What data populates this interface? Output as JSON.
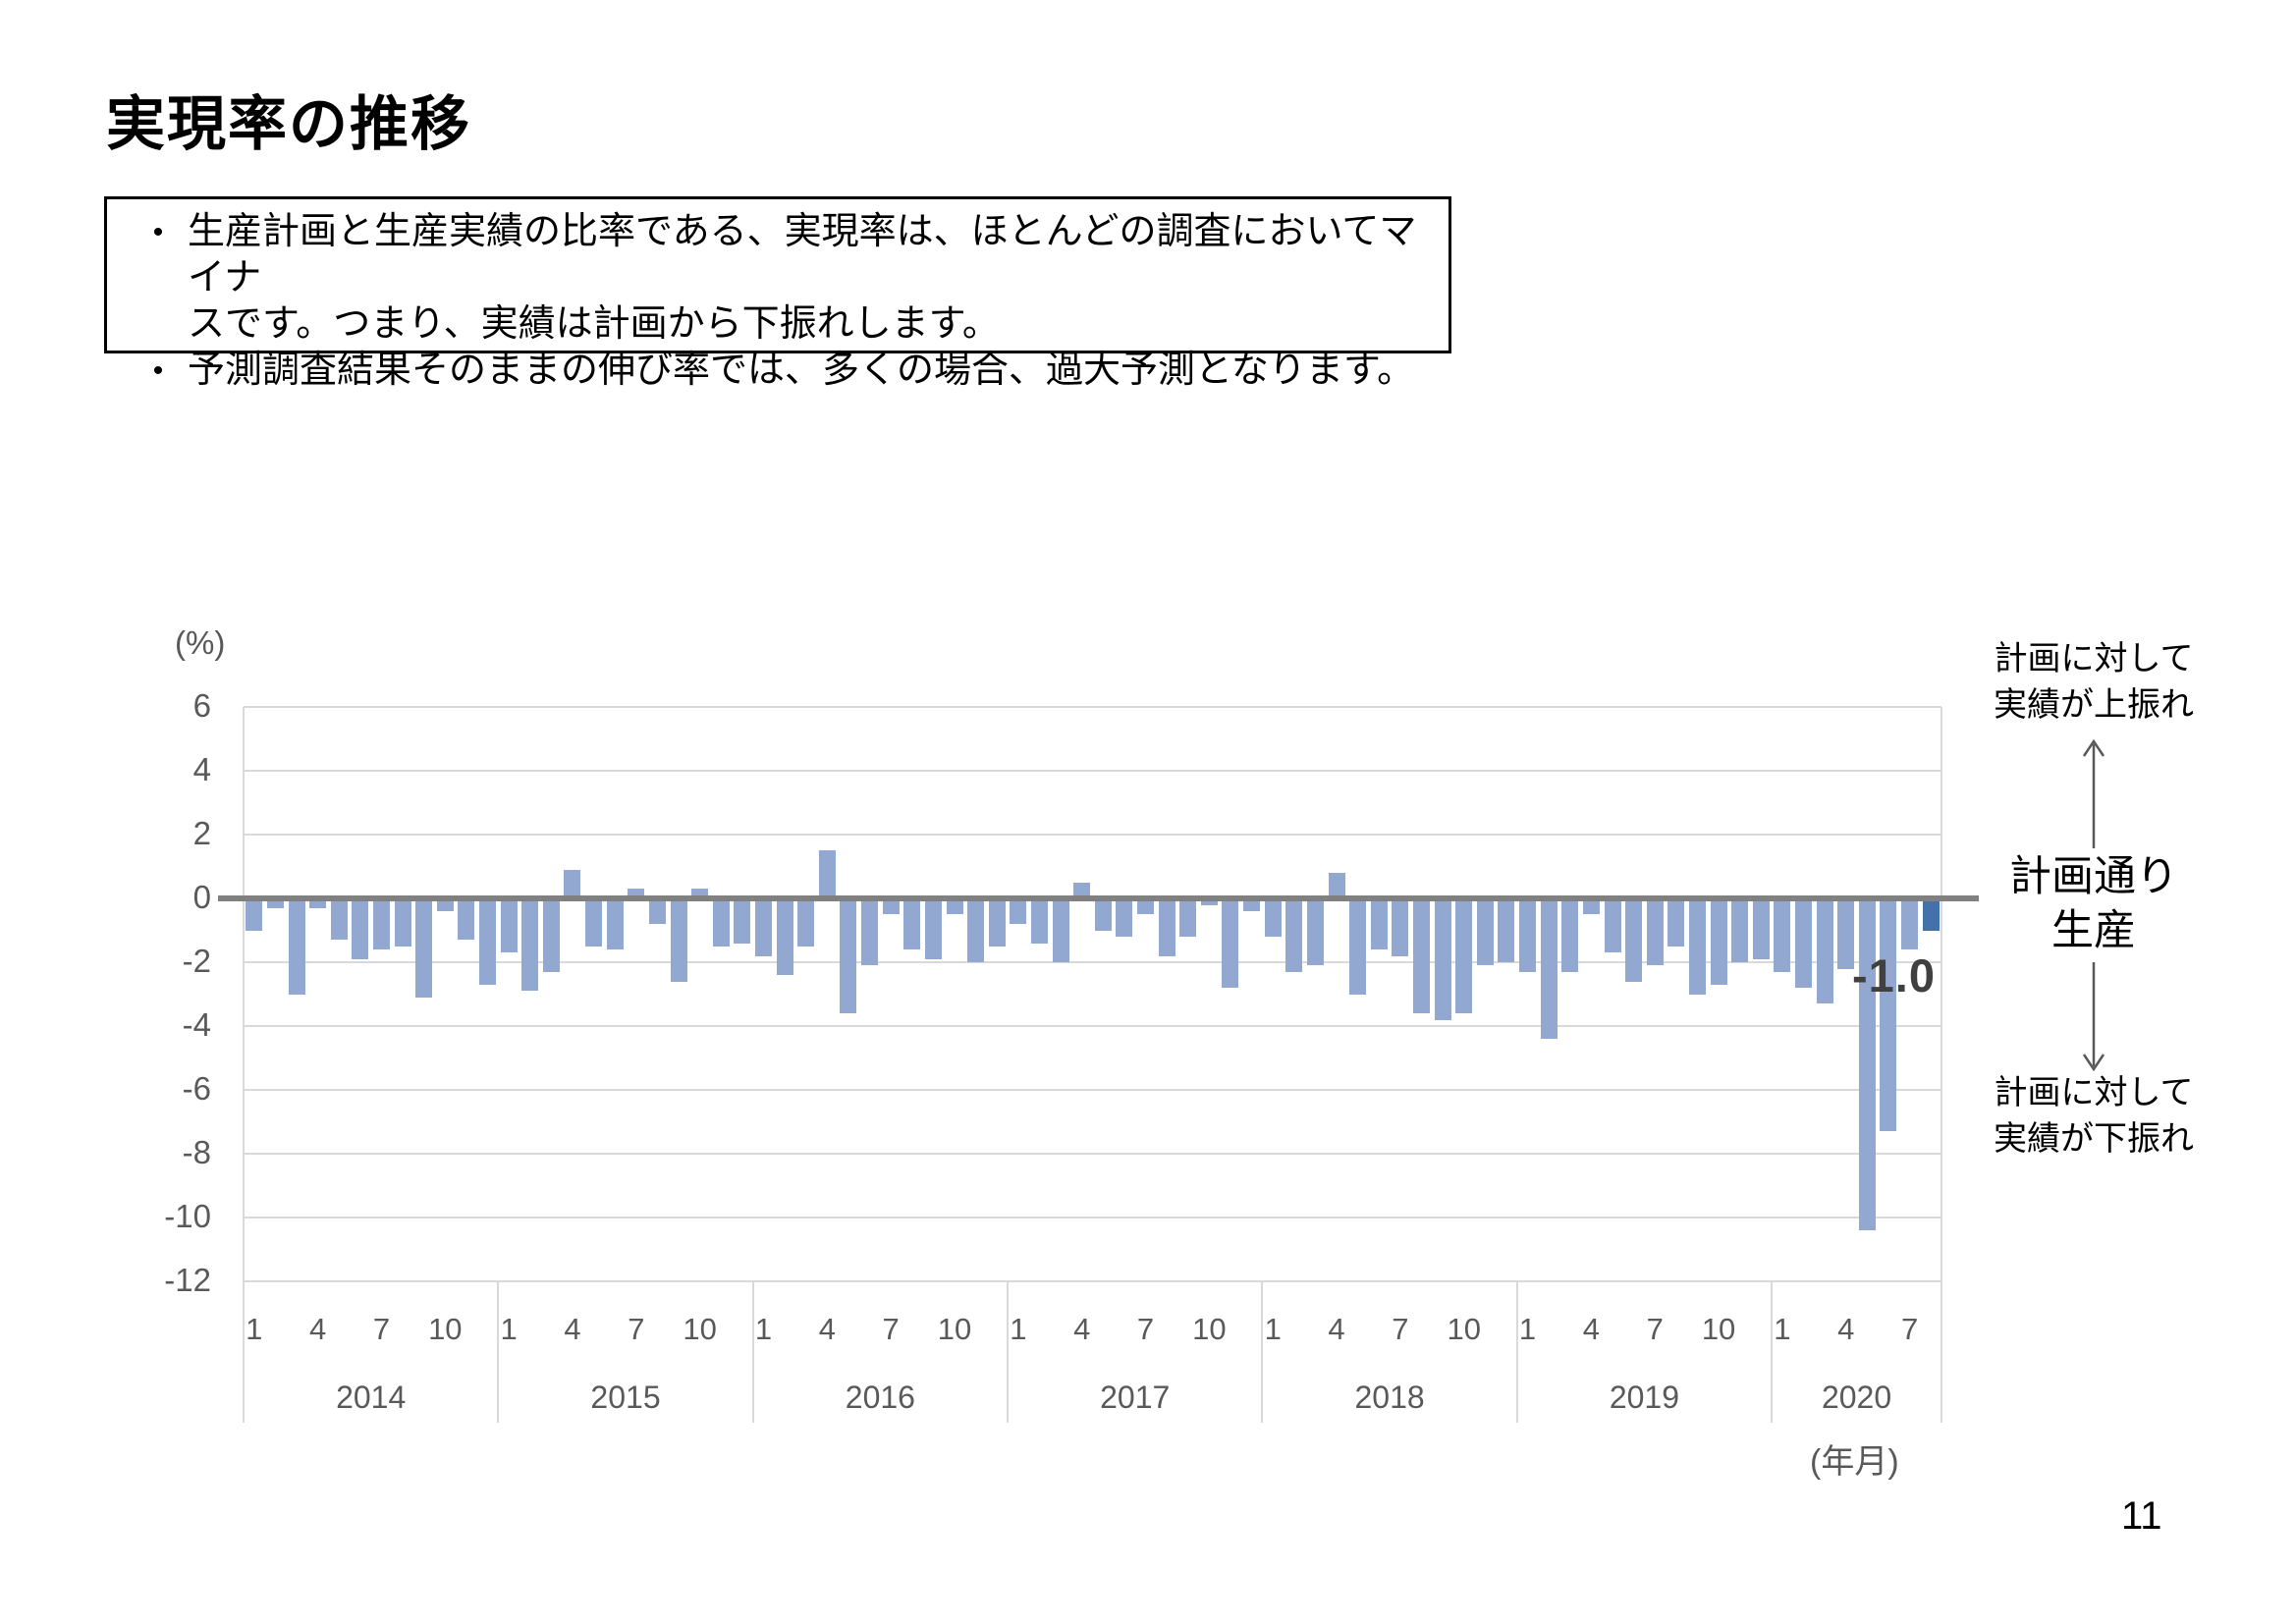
{
  "slide": {
    "title": "実現率の推移",
    "page_number": "11",
    "bullet1_line1": "生産計画と生産実績の比率である、実現率は、ほとんどの調査においてマイナ",
    "bullet1_line2": "スです。つまり、実績は計画から下振れします。",
    "bullet2_line1": "予測調査結果そのままの伸び率では、多くの場合、過大予測となります。",
    "bullet_char": "•"
  },
  "chart_data": {
    "type": "bar",
    "title": "",
    "unit_label": "(%)",
    "xlabel": "(年月)",
    "ylim": [
      -12,
      6
    ],
    "yticks": [
      6,
      4,
      2,
      0,
      -2,
      -4,
      -6,
      -8,
      -10,
      -12
    ],
    "grid": true,
    "month_ticks": [
      1,
      4,
      7,
      10
    ],
    "years": [
      {
        "year": "2014",
        "values": [
          -1.0,
          -0.3,
          -3.0,
          -0.3,
          -1.3,
          -1.9,
          -1.6,
          -1.5,
          -3.1,
          -0.4,
          -1.3,
          -2.7
        ]
      },
      {
        "year": "2015",
        "values": [
          -1.7,
          -2.9,
          -2.3,
          0.9,
          -1.5,
          -1.6,
          0.3,
          -0.8,
          -2.6,
          0.3,
          -1.5,
          -1.4
        ]
      },
      {
        "year": "2016",
        "values": [
          -1.8,
          -2.4,
          -1.5,
          1.5,
          -3.6,
          -2.1,
          -0.5,
          -1.6,
          -1.9,
          -0.5,
          -2.0,
          -1.5
        ]
      },
      {
        "year": "2017",
        "values": [
          -0.8,
          -1.4,
          -2.0,
          0.5,
          -1.0,
          -1.2,
          -0.5,
          -1.8,
          -1.2,
          -0.2,
          -2.8,
          -0.4
        ]
      },
      {
        "year": "2018",
        "values": [
          -1.2,
          -2.3,
          -2.1,
          0.8,
          -3.0,
          -1.6,
          -1.8,
          -3.6,
          -3.8,
          -3.6,
          -2.1,
          -2.0
        ]
      },
      {
        "year": "2019",
        "values": [
          -2.3,
          -4.4,
          -2.3,
          -0.5,
          -1.7,
          -2.6,
          -2.1,
          -1.5,
          -3.0,
          -2.7,
          -2.0,
          -1.9
        ]
      },
      {
        "year": "2020",
        "values": [
          -2.3,
          -2.8,
          -3.3,
          -2.2,
          -10.4,
          -7.3,
          -1.6,
          -1.0
        ]
      }
    ],
    "highlight_last_bar": true,
    "last_value_label": "-1.0",
    "colors": {
      "bar": "#92A8D0",
      "bar_highlight": "#4472A8",
      "zero_line": "#808080",
      "grid": "#D9D9D9",
      "axis_text": "#595959",
      "last_label_text": "#404040"
    }
  },
  "annotations": {
    "upper_line1": "計画に対して",
    "upper_line2": "実績が上振れ",
    "middle_line1": "計画通り",
    "middle_line2": "生産",
    "lower_line1": "計画に対して",
    "lower_line2": "実績が下振れ"
  }
}
